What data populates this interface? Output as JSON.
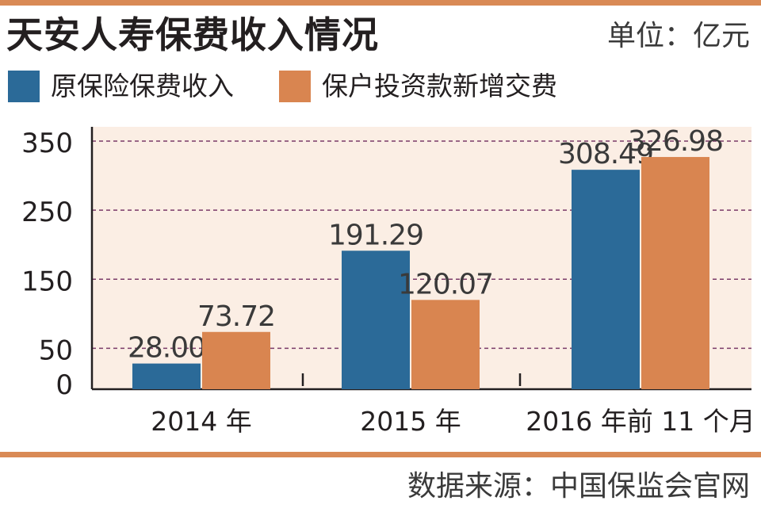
{
  "header": {
    "title": "天安人寿保费收入情况",
    "unit": "单位：亿元"
  },
  "legend": [
    {
      "label": "原保险保费收入",
      "color": "#2b6a98"
    },
    {
      "label": "保户投资款新增交费",
      "color": "#d98550"
    }
  ],
  "colors": {
    "plot_background": "#fbeee4",
    "gridline": "#7a3a68",
    "accent_rule": "#d98a55"
  },
  "chart_data": {
    "type": "bar",
    "categories": [
      "2014 年",
      "2015 年",
      "2016 年前 11 个月"
    ],
    "series": [
      {
        "name": "原保险保费收入",
        "values": [
          28.0,
          191.29,
          308.49
        ],
        "labels": [
          "28.00",
          "191.29",
          "308.49"
        ]
      },
      {
        "name": "保户投资款新增交费",
        "values": [
          73.72,
          120.07,
          326.98
        ],
        "labels": [
          "73.72",
          "120.07",
          "326.98"
        ]
      }
    ],
    "yticks": [
      "0",
      "50",
      "150",
      "250",
      "350"
    ],
    "ylim": [
      0,
      350
    ],
    "grid": true,
    "legend_position": "top-left"
  },
  "footer": {
    "source": "数据来源：中国保监会官网"
  }
}
